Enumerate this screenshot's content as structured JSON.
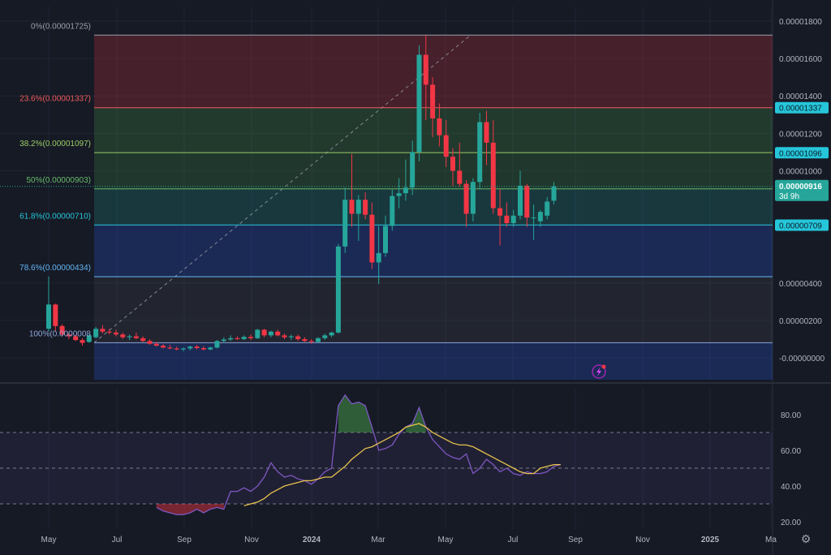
{
  "chart_data": [
    {
      "type": "candlestick",
      "title": "",
      "x_axis_labels": [
        "May",
        "Jul",
        "Sep",
        "Nov",
        "2024",
        "Mar",
        "May",
        "Jul",
        "Sep",
        "Nov",
        "2025",
        "Ma"
      ],
      "y_axis_labels": [
        "0.00001800",
        "0.00001600",
        "0.00001400",
        "0.00001200",
        "0.00001000",
        "0.00000400",
        "0.00000200",
        "-0.00000000"
      ],
      "ylim": [
        -2.5e-07,
        1.85e-05
      ],
      "grid": true,
      "fibonacci": {
        "levels": [
          {
            "label": "0%(0.00001725)",
            "ratio": 0,
            "price": 1.725e-05,
            "color": "#9aa0aa"
          },
          {
            "label": "23.6%(0.00001337)",
            "ratio": 0.236,
            "price": 1.337e-05,
            "color": "#f05a5a"
          },
          {
            "label": "38.2%(0.00001097)",
            "ratio": 0.382,
            "price": 1.097e-05,
            "color": "#9ccc65"
          },
          {
            "label": "50%(0.00000903)",
            "ratio": 0.5,
            "price": 9.03e-06,
            "color": "#66bb6a"
          },
          {
            "label": "61.8%(0.00000710)",
            "ratio": 0.618,
            "price": 7.1e-06,
            "color": "#26c6da"
          },
          {
            "label": "78.6%(0.00000434)",
            "ratio": 0.786,
            "price": 4.34e-06,
            "color": "#64b5f6"
          },
          {
            "label": "100%(0.0000008",
            "ratio": 1,
            "price": 8.1e-07,
            "color": "#8ea5d8"
          }
        ]
      },
      "price_tags": [
        {
          "text": "0.00001337",
          "price": 1.337e-05,
          "bg": "#26c6da",
          "fg": "#0b1e2a"
        },
        {
          "text": "0.00001096",
          "price": 1.096e-05,
          "bg": "#26c6da",
          "fg": "#0b1e2a"
        },
        {
          "text": "0.00000903",
          "price": 9.03e-06,
          "bg": "#26c6da",
          "fg": "#0b1e2a"
        },
        {
          "text": "0.00000709",
          "price": 7.09e-06,
          "bg": "#26c6da",
          "fg": "#0b1e2a"
        }
      ],
      "last_price": {
        "price": "0.00000916",
        "countdown": "3d 9h",
        "value": 9.16e-06,
        "bg": "#26a69a"
      },
      "up_color": "#26a69a",
      "down_color": "#f23645",
      "candles": [
        {
          "o": 1.55e-06,
          "h": 4.35e-06,
          "l": 1.4e-06,
          "c": 2.85e-06
        },
        {
          "o": 2.85e-06,
          "h": 2.9e-06,
          "l": 1.4e-06,
          "c": 1.7e-06
        },
        {
          "o": 1.7e-06,
          "h": 1.8e-06,
          "l": 1.15e-06,
          "c": 1.25e-06
        },
        {
          "o": 1.25e-06,
          "h": 1.4e-06,
          "l": 1e-06,
          "c": 1.15e-06
        },
        {
          "o": 1.15e-06,
          "h": 1.25e-06,
          "l": 9e-07,
          "c": 9.5e-07
        },
        {
          "o": 9.5e-07,
          "h": 1.05e-06,
          "l": 6.5e-07,
          "c": 8e-07
        },
        {
          "o": 8.5e-07,
          "h": 1.25e-06,
          "l": 8e-07,
          "c": 1.2e-06
        },
        {
          "o": 1.1e-06,
          "h": 1.65e-06,
          "l": 1.05e-06,
          "c": 1.55e-06
        },
        {
          "o": 1.55e-06,
          "h": 1.75e-06,
          "l": 1.3e-06,
          "c": 1.4e-06
        },
        {
          "o": 1.4e-06,
          "h": 1.55e-06,
          "l": 1.25e-06,
          "c": 1.35e-06
        },
        {
          "o": 1.35e-06,
          "h": 1.5e-06,
          "l": 1.15e-06,
          "c": 1.25e-06
        },
        {
          "o": 1.25e-06,
          "h": 1.35e-06,
          "l": 1e-06,
          "c": 1.1e-06
        },
        {
          "o": 1.1e-06,
          "h": 1.25e-06,
          "l": 9.5e-07,
          "c": 1.15e-06
        },
        {
          "o": 1.15e-06,
          "h": 1.35e-06,
          "l": 1e-06,
          "c": 1.05e-06
        },
        {
          "o": 1.05e-06,
          "h": 1.15e-06,
          "l": 8.5e-07,
          "c": 9e-07
        },
        {
          "o": 9e-07,
          "h": 1e-06,
          "l": 7e-07,
          "c": 7.5e-07
        },
        {
          "o": 7.5e-07,
          "h": 8.5e-07,
          "l": 6e-07,
          "c": 6.5e-07
        },
        {
          "o": 6.5e-07,
          "h": 7.5e-07,
          "l": 5e-07,
          "c": 5.5e-07
        },
        {
          "o": 5.5e-07,
          "h": 7e-07,
          "l": 4.5e-07,
          "c": 5e-07
        },
        {
          "o": 5e-07,
          "h": 6e-07,
          "l": 4e-07,
          "c": 4.5e-07
        },
        {
          "o": 4.5e-07,
          "h": 5.5e-07,
          "l": 3.5e-07,
          "c": 5e-07
        },
        {
          "o": 5e-07,
          "h": 6.5e-07,
          "l": 4e-07,
          "c": 6e-07
        },
        {
          "o": 6e-07,
          "h": 7e-07,
          "l": 4.5e-07,
          "c": 5.2e-07
        },
        {
          "o": 5.2e-07,
          "h": 6.2e-07,
          "l": 4e-07,
          "c": 4.5e-07
        },
        {
          "o": 4.5e-07,
          "h": 6e-07,
          "l": 4e-07,
          "c": 5.5e-07
        },
        {
          "o": 5.5e-07,
          "h": 9.5e-07,
          "l": 5e-07,
          "c": 9e-07
        },
        {
          "o": 9e-07,
          "h": 1.1e-06,
          "l": 8e-07,
          "c": 9.8e-07
        },
        {
          "o": 9.8e-07,
          "h": 1.2e-06,
          "l": 9e-07,
          "c": 1.05e-06
        },
        {
          "o": 1.05e-06,
          "h": 1.15e-06,
          "l": 9.5e-07,
          "c": 1e-06
        },
        {
          "o": 1e-06,
          "h": 1.2e-06,
          "l": 9.5e-07,
          "c": 1.12e-06
        },
        {
          "o": 1.12e-06,
          "h": 1.25e-06,
          "l": 9.5e-07,
          "c": 1.05e-06
        },
        {
          "o": 1.05e-06,
          "h": 1.55e-06,
          "l": 1e-06,
          "c": 1.5e-06
        },
        {
          "o": 1.5e-06,
          "h": 1.55e-06,
          "l": 1.1e-06,
          "c": 1.2e-06
        },
        {
          "o": 1.2e-06,
          "h": 1.45e-06,
          "l": 1.1e-06,
          "c": 1.4e-06
        },
        {
          "o": 1.4e-06,
          "h": 1.5e-06,
          "l": 1.15e-06,
          "c": 1.2e-06
        },
        {
          "o": 1.2e-06,
          "h": 1.3e-06,
          "l": 1e-06,
          "c": 1.1e-06
        },
        {
          "o": 1.1e-06,
          "h": 1.25e-06,
          "l": 9.5e-07,
          "c": 1.15e-06
        },
        {
          "o": 1.15e-06,
          "h": 1.25e-06,
          "l": 9e-07,
          "c": 1e-06
        },
        {
          "o": 1e-06,
          "h": 1.1e-06,
          "l": 8.5e-07,
          "c": 9e-07
        },
        {
          "o": 9e-07,
          "h": 1e-06,
          "l": 7.5e-07,
          "c": 8.5e-07
        },
        {
          "o": 8.5e-07,
          "h": 1.1e-06,
          "l": 8e-07,
          "c": 1.05e-06
        },
        {
          "o": 1.05e-06,
          "h": 1.3e-06,
          "l": 9.5e-07,
          "c": 1.2e-06
        },
        {
          "o": 1.2e-06,
          "h": 1.4e-06,
          "l": 1.1e-06,
          "c": 1.35e-06
        },
        {
          "o": 1.35e-06,
          "h": 6.1e-06,
          "l": 1.3e-06,
          "c": 5.95e-06
        },
        {
          "o": 5.95e-06,
          "h": 9.1e-06,
          "l": 5.6e-06,
          "c": 8.45e-06
        },
        {
          "o": 8.45e-06,
          "h": 1.09e-05,
          "l": 7e-06,
          "c": 7.7e-06
        },
        {
          "o": 7.7e-06,
          "h": 8.7e-06,
          "l": 6.25e-06,
          "c": 8.45e-06
        },
        {
          "o": 8.45e-06,
          "h": 8.85e-06,
          "l": 7.4e-06,
          "c": 7.65e-06
        },
        {
          "o": 7.65e-06,
          "h": 8.3e-06,
          "l": 4.75e-06,
          "c": 5.1e-06
        },
        {
          "o": 5.1e-06,
          "h": 7.05e-06,
          "l": 3.95e-06,
          "c": 5.6e-06
        },
        {
          "o": 5.6e-06,
          "h": 7.6e-06,
          "l": 5.4e-06,
          "c": 7.05e-06
        },
        {
          "o": 7.05e-06,
          "h": 9e-06,
          "l": 6.8e-06,
          "c": 8.65e-06
        },
        {
          "o": 8.65e-06,
          "h": 9.6e-06,
          "l": 8e-06,
          "c": 8.8e-06
        },
        {
          "o": 8.8e-06,
          "h": 1.06e-05,
          "l": 8.4e-06,
          "c": 9.1e-06
        },
        {
          "o": 9.1e-06,
          "h": 1.16e-05,
          "l": 8.7e-06,
          "c": 1.1e-05
        },
        {
          "o": 1.1e-05,
          "h": 1.67e-05,
          "l": 1.05e-05,
          "c": 1.62e-05
        },
        {
          "o": 1.62e-05,
          "h": 1.725e-05,
          "l": 1.27e-05,
          "c": 1.46e-05
        },
        {
          "o": 1.46e-05,
          "h": 1.5e-05,
          "l": 1.18e-05,
          "c": 1.28e-05
        },
        {
          "o": 1.28e-05,
          "h": 1.36e-05,
          "l": 1.13e-05,
          "c": 1.19e-05
        },
        {
          "o": 1.19e-05,
          "h": 1.27e-05,
          "l": 1.02e-05,
          "c": 1.075e-05
        },
        {
          "o": 1.075e-05,
          "h": 1.12e-05,
          "l": 9.2e-06,
          "c": 1e-05
        },
        {
          "o": 1e-05,
          "h": 1.15e-05,
          "l": 9.15e-06,
          "c": 9.3e-06
        },
        {
          "o": 9.3e-06,
          "h": 9.5e-06,
          "l": 7e-06,
          "c": 7.7e-06
        },
        {
          "o": 7.7e-06,
          "h": 9.6e-06,
          "l": 7.3e-06,
          "c": 9.4e-06
        },
        {
          "o": 9.4e-06,
          "h": 1.31e-05,
          "l": 9e-06,
          "c": 1.26e-05
        },
        {
          "o": 1.26e-05,
          "h": 1.32e-05,
          "l": 1.03e-05,
          "c": 1.15e-05
        },
        {
          "o": 1.15e-05,
          "h": 1.27e-05,
          "l": 7.7e-06,
          "c": 8e-06
        },
        {
          "o": 8e-06,
          "h": 9e-06,
          "l": 6e-06,
          "c": 7.6e-06
        },
        {
          "o": 7.6e-06,
          "h": 8.3e-06,
          "l": 7e-06,
          "c": 7.2e-06
        },
        {
          "o": 7.2e-06,
          "h": 7.9e-06,
          "l": 7e-06,
          "c": 7.6e-06
        },
        {
          "o": 7.6e-06,
          "h": 1e-05,
          "l": 7.4e-06,
          "c": 9.2e-06
        },
        {
          "o": 9.2e-06,
          "h": 9.3e-06,
          "l": 7e-06,
          "c": 7.5e-06
        },
        {
          "o": 7.5e-06,
          "h": 8.2e-06,
          "l": 6.3e-06,
          "c": 7.5e-06
        },
        {
          "o": 7.3e-06,
          "h": 7.9e-06,
          "l": 7e-06,
          "c": 7.8e-06
        },
        {
          "o": 7.6e-06,
          "h": 8.6e-06,
          "l": 7.4e-06,
          "c": 8.35e-06
        },
        {
          "o": 8.4e-06,
          "h": 9.4e-06,
          "l": 8.2e-06,
          "c": 9.16e-06
        }
      ]
    },
    {
      "type": "line",
      "title": "",
      "y_axis_labels": [
        "80.00",
        "60.00",
        "40.00",
        "20.00"
      ],
      "ylim": [
        18,
        97
      ],
      "bands": [
        70,
        50,
        30
      ],
      "series": [
        {
          "color": "#7e57c2",
          "values": [
            null,
            null,
            null,
            null,
            null,
            null,
            null,
            null,
            null,
            null,
            null,
            null,
            null,
            null,
            null,
            null,
            28,
            26,
            25,
            24,
            24,
            25,
            27,
            25,
            27,
            28,
            27,
            37,
            37,
            39,
            37,
            40,
            45,
            53,
            48,
            45,
            46,
            44,
            43,
            41,
            44,
            48,
            50,
            85,
            91,
            86,
            87,
            85,
            73,
            60,
            61,
            63,
            69,
            73,
            75,
            84,
            73,
            66,
            62,
            58,
            56,
            55,
            58,
            47,
            50,
            55,
            52,
            48,
            50,
            47,
            46,
            48,
            47,
            47,
            48,
            51,
            52
          ]
        },
        {
          "color": "#e8c34a",
          "values": [
            null,
            null,
            null,
            null,
            null,
            null,
            null,
            null,
            null,
            null,
            null,
            null,
            null,
            null,
            null,
            null,
            null,
            null,
            null,
            null,
            null,
            null,
            null,
            null,
            null,
            null,
            null,
            null,
            null,
            29,
            30,
            31,
            33,
            36,
            38,
            40,
            41,
            42,
            43,
            43,
            44,
            45,
            45,
            48,
            51,
            55,
            58,
            61,
            62,
            64,
            66,
            68,
            70,
            73,
            74,
            75,
            73,
            70,
            68,
            66,
            64,
            63,
            63,
            62,
            60,
            58,
            56,
            54,
            52,
            50,
            48,
            47,
            47,
            50,
            51,
            52,
            52
          ]
        }
      ]
    }
  ],
  "x_axis": {
    "labels": [
      "May",
      "Jul",
      "Sep",
      "Nov",
      "2024",
      "Mar",
      "May",
      "Jul",
      "Sep",
      "Nov",
      "2025",
      "Ma"
    ],
    "settings_icon": "gear-icon"
  },
  "chart_icon": "lightning-icon"
}
